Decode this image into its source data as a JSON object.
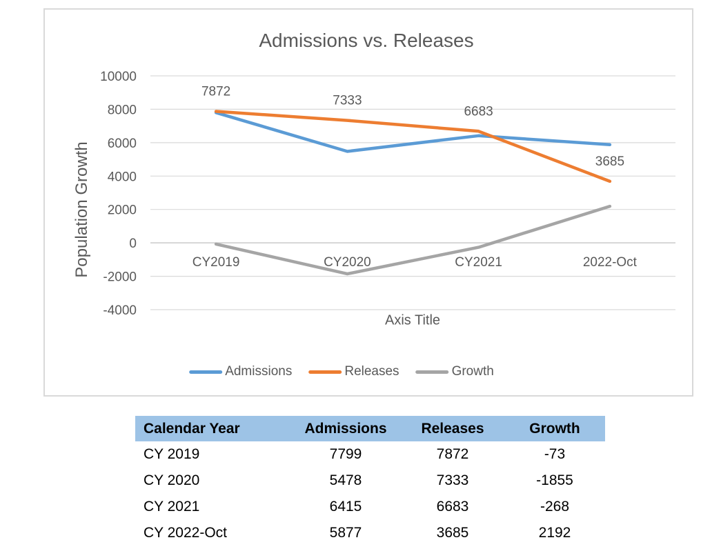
{
  "chart": {
    "title": "Admissions vs. Releases",
    "y_axis_title": "Population Growth",
    "x_axis_title": "Axis Title"
  },
  "chart_data": {
    "type": "line",
    "title": "Admissions vs. Releases",
    "xlabel": "Axis Title",
    "ylabel": "Population Growth",
    "categories": [
      "CY2019",
      "CY2020",
      "CY2021",
      "2022-Oct"
    ],
    "series": [
      {
        "name": "Admissions",
        "color": "#5B9BD5",
        "values": [
          7799,
          5478,
          6415,
          5877
        ],
        "data_labels": false
      },
      {
        "name": "Releases",
        "color": "#ED7D31",
        "values": [
          7872,
          7333,
          6683,
          3685
        ],
        "data_labels": true
      },
      {
        "name": "Growth",
        "color": "#A5A5A5",
        "values": [
          -73,
          -1855,
          -268,
          2192
        ],
        "data_labels": false
      }
    ],
    "ylim": [
      -4000,
      10000
    ],
    "ytick_step": 2000,
    "ytick_labels": [
      "-4000",
      "-2000",
      "0",
      "2000",
      "4000",
      "6000",
      "8000",
      "10000"
    ],
    "grid": true,
    "legend_position": "bottom"
  },
  "table": {
    "headers": [
      "Calendar Year",
      "Admissions",
      "Releases",
      "Growth"
    ],
    "rows": [
      [
        "CY 2019",
        "7799",
        "7872",
        "-73"
      ],
      [
        "CY 2020",
        "5478",
        "7333",
        "-1855"
      ],
      [
        "CY 2021",
        "6415",
        "6683",
        "-268"
      ],
      [
        "CY 2022-Oct",
        "5877",
        "3685",
        "2192"
      ]
    ],
    "header_bg": "#9DC3E6"
  },
  "colors": {
    "chart_text": "#595959",
    "gridline": "#D9D9D9",
    "zero_axis_line": "#C9C9C9",
    "frame_border": "#D9D9D9"
  }
}
